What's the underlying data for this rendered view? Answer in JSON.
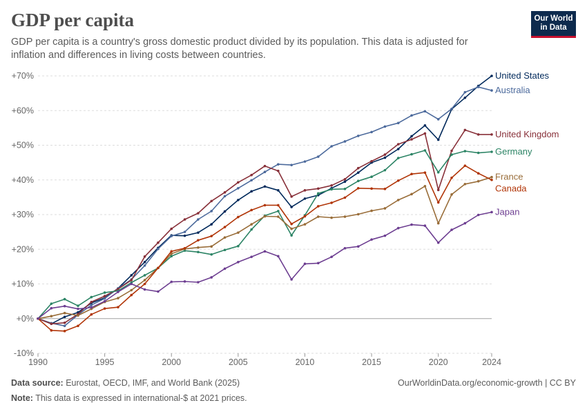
{
  "header": {
    "title": "GDP per capita",
    "subtitle": "GDP per capita is a country's gross domestic product divided by its population. This data is adjusted for inflation and differences in living costs between countries.",
    "logo_line1": "Our World",
    "logo_line2": "in Data"
  },
  "footer": {
    "source_label": "Data source:",
    "source_text": "Eurostat, OECD, IMF, and World Bank (2025)",
    "note_label": "Note:",
    "note_text": "This data is expressed in international-$ at 2021 prices.",
    "url_text": "OurWorldinData.org/economic-growth | CC BY"
  },
  "chart_data": {
    "type": "line",
    "title": "GDP per capita",
    "xlabel": "",
    "ylabel": "",
    "xlim": [
      1990,
      2024
    ],
    "ylim": [
      -10,
      70
    ],
    "x_ticks": [
      1990,
      1995,
      2000,
      2005,
      2010,
      2015,
      2020,
      2024
    ],
    "x_tick_labels": [
      "1990",
      "1995",
      "2000",
      "2005",
      "2010",
      "2015",
      "2020",
      "2024"
    ],
    "y_ticks": [
      -10,
      0,
      10,
      20,
      30,
      40,
      50,
      60,
      70
    ],
    "y_tick_labels": [
      "-10%",
      "+0%",
      "+10%",
      "+20%",
      "+30%",
      "+40%",
      "+50%",
      "+60%",
      "+70%"
    ],
    "grid": true,
    "x": [
      1990,
      1991,
      1992,
      1993,
      1994,
      1995,
      1996,
      1997,
      1998,
      1999,
      2000,
      2001,
      2002,
      2003,
      2004,
      2005,
      2006,
      2007,
      2008,
      2009,
      2010,
      2011,
      2012,
      2013,
      2014,
      2015,
      2016,
      2017,
      2018,
      2019,
      2020,
      2021,
      2022,
      2023,
      2024
    ],
    "series": [
      {
        "name": "United States",
        "color": "#00295b",
        "values": [
          0,
          -1.5,
          0.5,
          1.8,
          4.5,
          6,
          8.7,
          12.5,
          16.3,
          20.4,
          24,
          23.9,
          24.8,
          27.2,
          30.9,
          34.2,
          36.7,
          38.1,
          37,
          32.2,
          34.6,
          35.6,
          37.6,
          39.5,
          42.1,
          45,
          46.4,
          48.9,
          52.6,
          55.7,
          51.6,
          60.4,
          63.7,
          67.1,
          70
        ]
      },
      {
        "name": "Australia",
        "color": "#4c6a9c",
        "values": [
          0,
          -1.3,
          -2.1,
          1.1,
          3.9,
          5.8,
          8.7,
          11.3,
          15.3,
          20.1,
          23.8,
          25,
          28.6,
          31,
          35.3,
          37.6,
          39.9,
          42.3,
          44.5,
          44.3,
          45.3,
          46.7,
          49.7,
          51.1,
          52.7,
          53.8,
          55.4,
          56.4,
          58.6,
          59.8,
          57.5,
          60.5,
          65.3,
          66.8,
          65.8
        ]
      },
      {
        "name": "United Kingdom",
        "color": "#883039",
        "values": [
          0,
          -1.5,
          -1.2,
          1.3,
          4.8,
          6.5,
          8.5,
          11.1,
          17.9,
          21.9,
          25.9,
          28.6,
          30.4,
          33.9,
          36.4,
          39.3,
          41.4,
          44,
          42.6,
          35.2,
          37,
          37.5,
          38.4,
          40.2,
          43.4,
          45.4,
          47.3,
          50.3,
          51.7,
          53.4,
          37.1,
          48.4,
          54.4,
          53.1,
          53.1
        ]
      },
      {
        "name": "Germany",
        "color": "#2c8465",
        "values": [
          0,
          4.3,
          5.6,
          3.7,
          6.2,
          7.5,
          8,
          10.4,
          12.5,
          14.6,
          18,
          19.6,
          19.2,
          18.5,
          19.8,
          20.9,
          25.7,
          29.7,
          31,
          24,
          29.8,
          36.1,
          37.3,
          37.4,
          39.7,
          40.9,
          42.8,
          46.3,
          47.4,
          48.5,
          42.2,
          47.3,
          48.3,
          47.8,
          48.1
        ]
      },
      {
        "name": "France",
        "color": "#996d39",
        "values": [
          0,
          0.7,
          1.6,
          0.9,
          2.8,
          4.8,
          5.9,
          8.2,
          11.1,
          14.6,
          18.7,
          20.1,
          20.5,
          20.8,
          23.4,
          24.8,
          27.2,
          29.5,
          29.4,
          25.9,
          27.2,
          29.4,
          29.1,
          29.4,
          30.1,
          31.1,
          31.8,
          34.2,
          35.9,
          38.2,
          27.5,
          35.8,
          38.8,
          39.6,
          40.8
        ]
      },
      {
        "name": "Canada",
        "color": "#b13507",
        "values": [
          0,
          -3.4,
          -3.6,
          -2.1,
          1.2,
          2.9,
          3.3,
          6.8,
          10,
          14.6,
          19.4,
          20.3,
          22.6,
          23.8,
          26.4,
          29.3,
          31.3,
          32.7,
          32.7,
          27.3,
          29.5,
          32.4,
          33.4,
          34.9,
          37.6,
          37.5,
          37.4,
          39.8,
          41.7,
          42.1,
          33.5,
          40.6,
          44.1,
          41.9,
          40
        ]
      },
      {
        "name": "Japan",
        "color": "#6d3e91",
        "values": [
          0,
          3,
          3.6,
          2.8,
          3.2,
          5,
          7.7,
          10,
          8.4,
          7.8,
          10.6,
          10.7,
          10.5,
          11.9,
          14.4,
          16.3,
          17.8,
          19.4,
          18,
          11.3,
          15.8,
          16,
          17.8,
          20.3,
          20.8,
          22.8,
          23.9,
          26.1,
          27.1,
          26.8,
          21.9,
          25.6,
          27.5,
          29.9,
          30.7
        ]
      }
    ]
  }
}
